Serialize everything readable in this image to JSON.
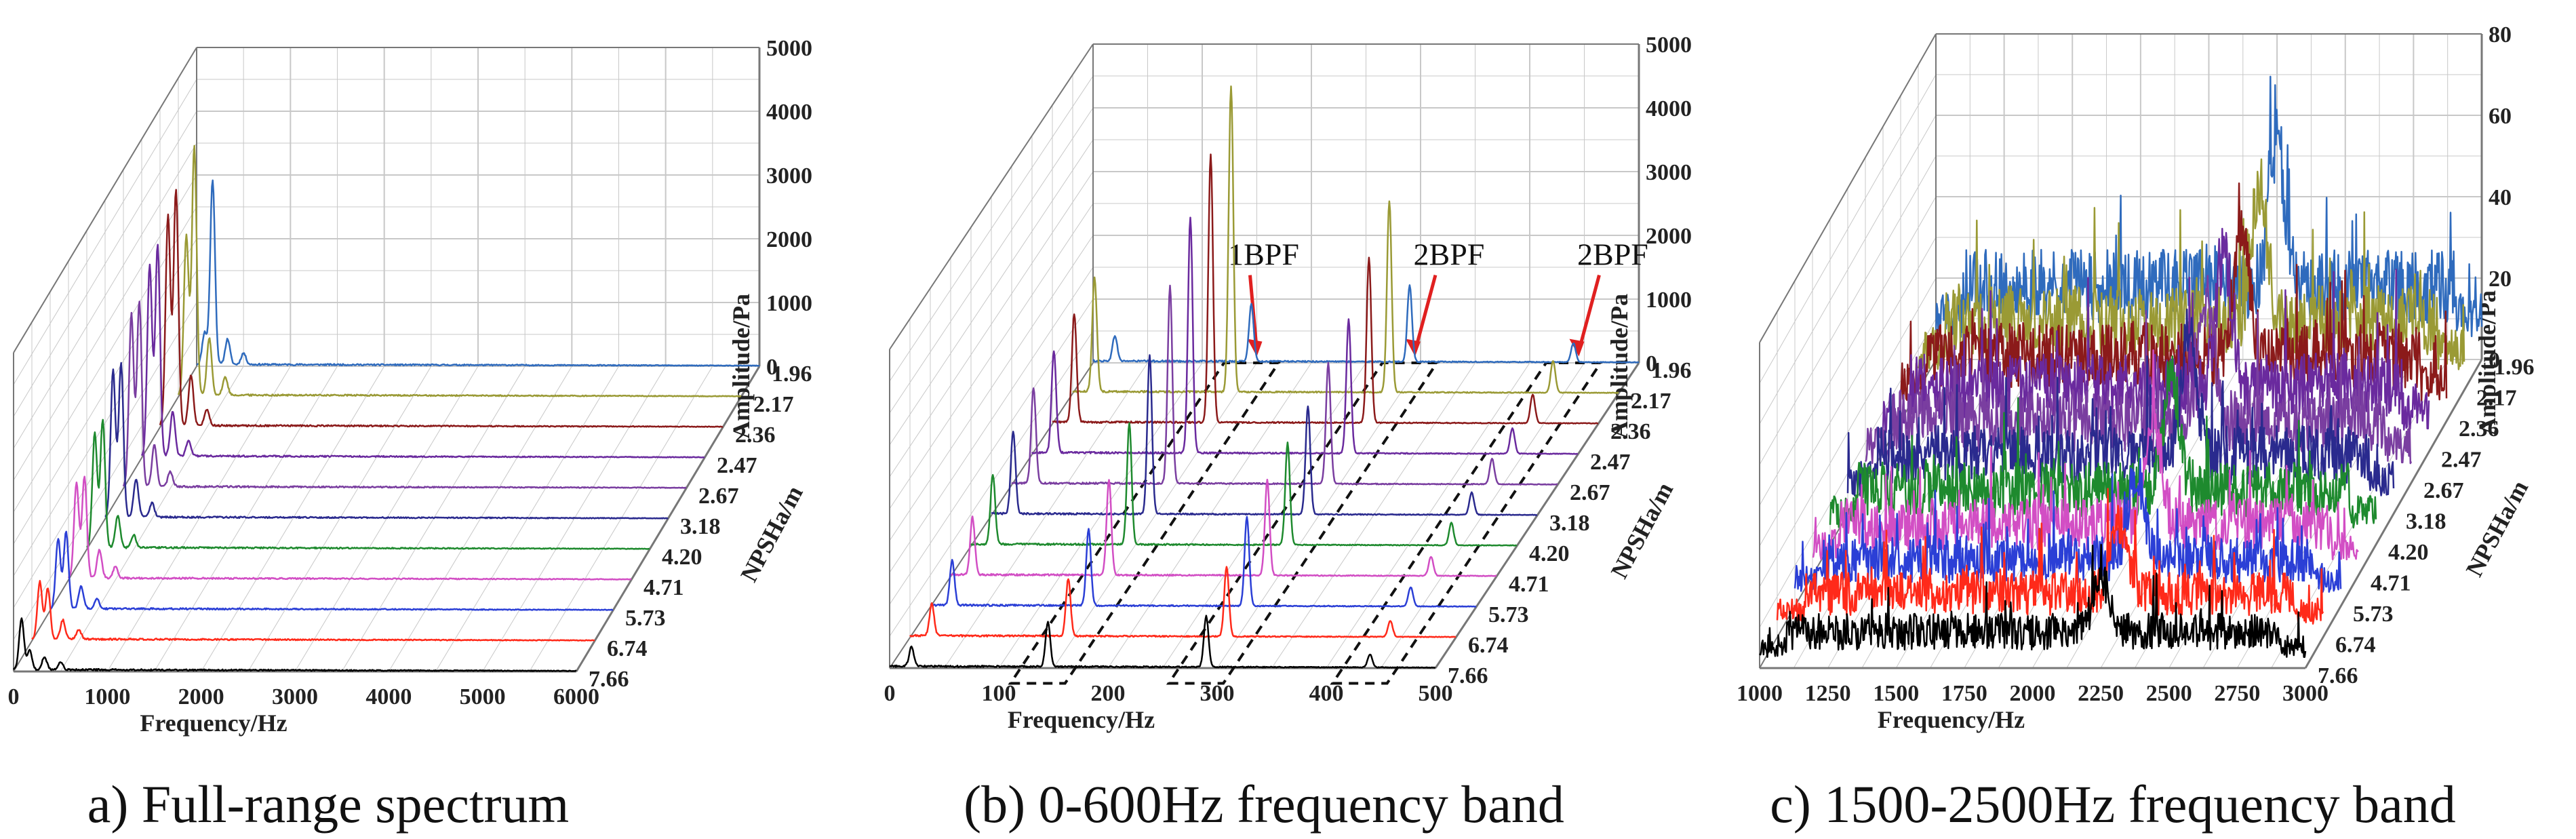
{
  "figure_captions": [
    "a) Full-range spectrum",
    "(b) 0-600Hz frequency band",
    "c) 1500-2500Hz frequency band"
  ],
  "colors": {
    "7.66": "#000000",
    "6.74": "#ff2a1a",
    "5.73": "#2b3fd6",
    "4.71": "#d24ec4",
    "4.20": "#1e8a2e",
    "3.18": "#2a2a8e",
    "2.67": "#7a3ea0",
    "2.47": "#6a2a9e",
    "2.36": "#8b1a1a",
    "2.17": "#9a9a35",
    "1.96": "#2f6bbd",
    "grid": "#c8c8c8",
    "axis": "#777777",
    "annotation_arrow": "#e02020"
  },
  "chart_data": [
    {
      "type": "waterfall-line",
      "caption": "a) Full-range spectrum",
      "xlabel": "Frequency/Hz",
      "ylabel": "NPSHa/m",
      "zlabel": "Amplitude/Pa",
      "xlim": [
        0,
        6000
      ],
      "zlim": [
        0,
        5000
      ],
      "x_ticks": [
        "0",
        "1000",
        "2000",
        "3000",
        "4000",
        "5000",
        "6000"
      ],
      "z_ticks": [
        "0",
        "1000",
        "2000",
        "3000",
        "4000",
        "5000"
      ],
      "npsh_levels": [
        "1.96",
        "2.17",
        "2.36",
        "2.47",
        "2.67",
        "3.18",
        "4.20",
        "4.71",
        "5.73",
        "6.74",
        "7.66"
      ],
      "series": [
        {
          "name": "7.66",
          "peaks": [
            [
              85,
              800
            ],
            [
              170,
              300
            ],
            [
              330,
              200
            ],
            [
              500,
              120
            ]
          ]
        },
        {
          "name": "6.74",
          "peaks": [
            [
              85,
              900
            ],
            [
              170,
              800
            ],
            [
              330,
              300
            ],
            [
              500,
              150
            ]
          ]
        },
        {
          "name": "5.73",
          "peaks": [
            [
              85,
              1100
            ],
            [
              170,
              1200
            ],
            [
              330,
              350
            ],
            [
              500,
              150
            ]
          ]
        },
        {
          "name": "4.71",
          "peaks": [
            [
              85,
              1500
            ],
            [
              170,
              1600
            ],
            [
              330,
              450
            ],
            [
              500,
              180
            ]
          ]
        },
        {
          "name": "4.20",
          "peaks": [
            [
              85,
              1800
            ],
            [
              170,
              2000
            ],
            [
              330,
              500
            ],
            [
              500,
              200
            ]
          ]
        },
        {
          "name": "3.18",
          "peaks": [
            [
              85,
              2300
            ],
            [
              170,
              2400
            ],
            [
              330,
              600
            ],
            [
              500,
              220
            ]
          ]
        },
        {
          "name": "2.67",
          "peaks": [
            [
              85,
              2700
            ],
            [
              170,
              2900
            ],
            [
              330,
              650
            ],
            [
              500,
              240
            ]
          ]
        },
        {
          "name": "2.47",
          "peaks": [
            [
              85,
              3000
            ],
            [
              170,
              3300
            ],
            [
              330,
              700
            ],
            [
              500,
              250
            ]
          ]
        },
        {
          "name": "2.36",
          "peaks": [
            [
              85,
              3300
            ],
            [
              170,
              3700
            ],
            [
              330,
              800
            ],
            [
              500,
              260
            ]
          ]
        },
        {
          "name": "2.17",
          "peaks": [
            [
              85,
              2500
            ],
            [
              170,
              3900
            ],
            [
              330,
              900
            ],
            [
              500,
              280
            ]
          ]
        },
        {
          "name": "1.96",
          "peaks": [
            [
              85,
              500
            ],
            [
              170,
              2900
            ],
            [
              330,
              400
            ],
            [
              500,
              180
            ]
          ]
        }
      ]
    },
    {
      "type": "waterfall-line",
      "caption": "(b) 0-600Hz frequency band",
      "xlabel": "Frequency/Hz",
      "ylabel": "NPSHa/m",
      "zlabel": "Amplitude/Pa",
      "xlim": [
        0,
        500
      ],
      "zlim": [
        0,
        5000
      ],
      "x_ticks": [
        "0",
        "100",
        "200",
        "300",
        "400",
        "500"
      ],
      "z_ticks": [
        "0",
        "1000",
        "2000",
        "3000",
        "4000",
        "5000"
      ],
      "npsh_levels": [
        "1.96",
        "2.17",
        "2.36",
        "2.47",
        "2.67",
        "3.18",
        "4.20",
        "4.71",
        "5.73",
        "6.74",
        "7.66"
      ],
      "annotations": [
        {
          "label": "1BPF",
          "freq": 145
        },
        {
          "label": "2BPF",
          "freq": 290
        },
        {
          "label": "2BPF",
          "freq": 440
        }
      ],
      "series": [
        {
          "name": "7.66",
          "peaks": [
            [
              20,
              300
            ],
            [
              145,
              700
            ],
            [
              290,
              800
            ],
            [
              440,
              200
            ]
          ]
        },
        {
          "name": "6.74",
          "peaks": [
            [
              20,
              500
            ],
            [
              145,
              900
            ],
            [
              290,
              1100
            ],
            [
              440,
              250
            ]
          ]
        },
        {
          "name": "5.73",
          "peaks": [
            [
              20,
              700
            ],
            [
              145,
              1200
            ],
            [
              290,
              1400
            ],
            [
              440,
              300
            ]
          ]
        },
        {
          "name": "4.71",
          "peaks": [
            [
              20,
              900
            ],
            [
              145,
              1500
            ],
            [
              290,
              1500
            ],
            [
              440,
              300
            ]
          ]
        },
        {
          "name": "4.20",
          "peaks": [
            [
              20,
              1100
            ],
            [
              145,
              1900
            ],
            [
              290,
              1600
            ],
            [
              440,
              350
            ]
          ]
        },
        {
          "name": "3.18",
          "peaks": [
            [
              20,
              1300
            ],
            [
              145,
              2500
            ],
            [
              290,
              1700
            ],
            [
              440,
              350
            ]
          ]
        },
        {
          "name": "2.67",
          "peaks": [
            [
              20,
              1500
            ],
            [
              145,
              3100
            ],
            [
              290,
              1900
            ],
            [
              440,
              400
            ]
          ]
        },
        {
          "name": "2.47",
          "peaks": [
            [
              20,
              1600
            ],
            [
              145,
              3700
            ],
            [
              290,
              2100
            ],
            [
              440,
              400
            ]
          ]
        },
        {
          "name": "2.36",
          "peaks": [
            [
              20,
              1700
            ],
            [
              145,
              4200
            ],
            [
              290,
              2600
            ],
            [
              440,
              450
            ]
          ]
        },
        {
          "name": "2.17",
          "peaks": [
            [
              20,
              1800
            ],
            [
              145,
              4800
            ],
            [
              290,
              3000
            ],
            [
              440,
              500
            ]
          ]
        },
        {
          "name": "1.96",
          "peaks": [
            [
              20,
              400
            ],
            [
              145,
              900
            ],
            [
              290,
              1200
            ],
            [
              440,
              300
            ]
          ]
        }
      ]
    },
    {
      "type": "waterfall-line",
      "caption": "c) 1500-2500Hz frequency band",
      "xlabel": "Frequency/Hz",
      "ylabel": "NPSHa/m",
      "zlabel": "Amplitude/Pa",
      "xlim": [
        1000,
        3000
      ],
      "zlim": [
        0,
        80
      ],
      "x_ticks": [
        "1000",
        "1250",
        "1500",
        "1750",
        "2000",
        "2250",
        "2500",
        "2750",
        "3000"
      ],
      "z_ticks": [
        "0",
        "20",
        "40",
        "60",
        "80"
      ],
      "npsh_levels": [
        "1.96",
        "2.17",
        "2.36",
        "2.47",
        "2.67",
        "3.18",
        "4.20",
        "4.71",
        "5.73",
        "6.74",
        "7.66"
      ],
      "series": [
        {
          "name": "7.66",
          "noise": 10,
          "peaks": [
            [
              2250,
              14
            ]
          ]
        },
        {
          "name": "6.74",
          "noise": 12,
          "peaks": [
            [
              2250,
              18
            ]
          ]
        },
        {
          "name": "5.73",
          "noise": 13,
          "peaks": [
            [
              2250,
              22
            ]
          ]
        },
        {
          "name": "4.71",
          "noise": 14,
          "peaks": [
            [
              2250,
              26
            ]
          ]
        },
        {
          "name": "4.20",
          "noise": 15,
          "peaks": [
            [
              2250,
              28
            ]
          ]
        },
        {
          "name": "3.18",
          "noise": 16,
          "peaks": [
            [
              2250,
              30
            ]
          ]
        },
        {
          "name": "2.67",
          "noise": 17,
          "peaks": [
            [
              2250,
              30
            ]
          ]
        },
        {
          "name": "2.47",
          "noise": 18,
          "peaks": [
            [
              2250,
              32
            ]
          ]
        },
        {
          "name": "2.36",
          "noise": 18,
          "peaks": [
            [
              2250,
              32
            ]
          ]
        },
        {
          "name": "2.17",
          "noise": 19,
          "peaks": [
            [
              2250,
              34
            ]
          ]
        },
        {
          "name": "1.96",
          "noise": 20,
          "peaks": [
            [
              2250,
              36
            ]
          ]
        }
      ]
    }
  ]
}
